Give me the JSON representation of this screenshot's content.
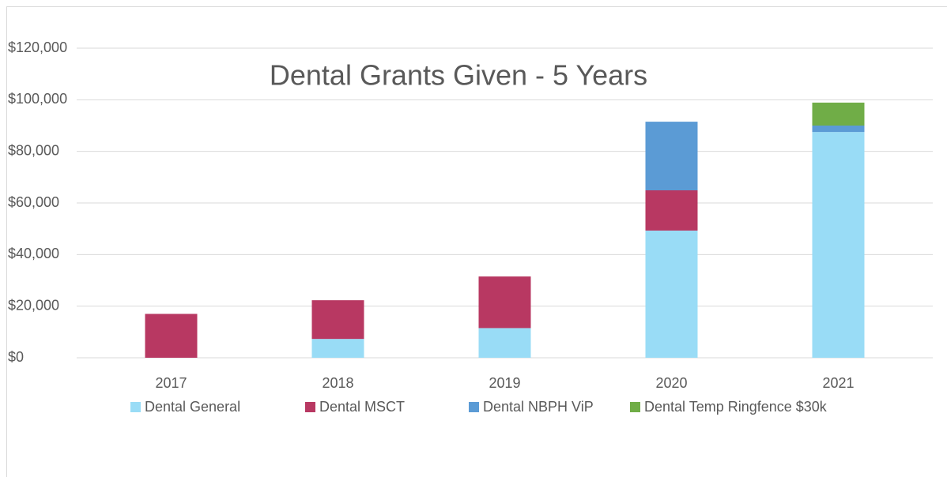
{
  "chart_data": {
    "type": "stacked-bar",
    "title": "Dental Grants Given - 5 Years",
    "categories": [
      "2017",
      "2018",
      "2019",
      "2020",
      "2021"
    ],
    "series": [
      {
        "name": "Dental General",
        "color": "#99dcf6",
        "values": [
          0,
          7300,
          11500,
          49300,
          87500
        ]
      },
      {
        "name": "Dental MSCT",
        "color": "#b83862",
        "values": [
          17000,
          15000,
          20000,
          15600,
          0
        ]
      },
      {
        "name": "Dental NBPH ViP",
        "color": "#5b9bd5",
        "values": [
          0,
          0,
          0,
          26600,
          2500
        ]
      },
      {
        "name": "Dental Temp Ringfence $30k",
        "color": "#70ad47",
        "values": [
          0,
          0,
          0,
          0,
          8900
        ]
      }
    ],
    "ylim": [
      0,
      120000
    ],
    "yticks": [
      {
        "value": 0,
        "label": "$0"
      },
      {
        "value": 20000,
        "label": "$20,000"
      },
      {
        "value": 40000,
        "label": "$40,000"
      },
      {
        "value": 60000,
        "label": "$60,000"
      },
      {
        "value": 80000,
        "label": "$80,000"
      },
      {
        "value": 100000,
        "label": "$100,000"
      },
      {
        "value": 120000,
        "label": "$120,000"
      }
    ],
    "grid": true,
    "legend": "bottom"
  }
}
